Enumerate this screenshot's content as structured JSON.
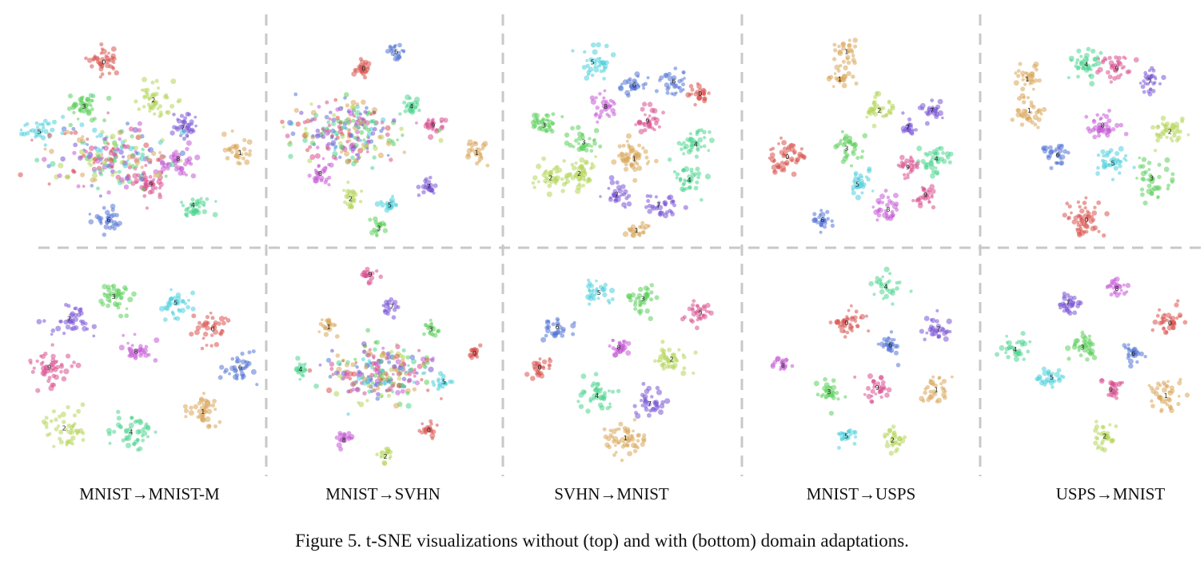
{
  "caption": "Figure 5. t-SNE visualizations without (top) and with (bottom) domain adaptations.",
  "digit_colors": {
    "0": "#d9534f",
    "1": "#d9a65a",
    "2": "#b5d65a",
    "3": "#5ccf5c",
    "4": "#4fd68f",
    "5": "#4fd0dd",
    "6": "#5577d6",
    "7": "#7a55d6",
    "8": "#c55ad6",
    "9": "#d9508f"
  },
  "chart_data": [
    {
      "type": "scatter",
      "panel": "MNIST→MNIST-M",
      "row": "top",
      "clusters": [
        {
          "label": "0",
          "cx": 0.38,
          "cy": 0.17,
          "spread": 0.035,
          "n": 40
        },
        {
          "label": "2",
          "cx": 0.58,
          "cy": 0.35,
          "spread": 0.04,
          "n": 45
        },
        {
          "label": "3",
          "cx": 0.3,
          "cy": 0.38,
          "spread": 0.035,
          "n": 40
        },
        {
          "label": "5",
          "cx": 0.12,
          "cy": 0.5,
          "spread": 0.035,
          "n": 35
        },
        {
          "label": "7",
          "cx": 0.7,
          "cy": 0.48,
          "spread": 0.03,
          "n": 35
        },
        {
          "label": "1",
          "cx": 0.93,
          "cy": 0.6,
          "spread": 0.03,
          "n": 30
        },
        {
          "label": "8",
          "cx": 0.68,
          "cy": 0.63,
          "spread": 0.035,
          "n": 40
        },
        {
          "label": "9",
          "cx": 0.57,
          "cy": 0.75,
          "spread": 0.035,
          "n": 40
        },
        {
          "label": "4",
          "cx": 0.74,
          "cy": 0.85,
          "spread": 0.03,
          "n": 35
        },
        {
          "label": "6",
          "cx": 0.4,
          "cy": 0.92,
          "spread": 0.03,
          "n": 30
        },
        {
          "label": "mixed",
          "cx": 0.4,
          "cy": 0.63,
          "spread": 0.1,
          "n": 220
        }
      ]
    },
    {
      "type": "scatter",
      "panel": "MNIST→SVHN",
      "row": "top",
      "clusters": [
        {
          "label": "6",
          "cx": 0.55,
          "cy": 0.12,
          "spread": 0.02,
          "n": 20
        },
        {
          "label": "0",
          "cx": 0.4,
          "cy": 0.2,
          "spread": 0.02,
          "n": 25
        },
        {
          "label": "4",
          "cx": 0.62,
          "cy": 0.38,
          "spread": 0.025,
          "n": 25
        },
        {
          "label": "9",
          "cx": 0.72,
          "cy": 0.47,
          "spread": 0.025,
          "n": 25
        },
        {
          "label": "1",
          "cx": 0.92,
          "cy": 0.6,
          "spread": 0.03,
          "n": 25
        },
        {
          "label": "8",
          "cx": 0.2,
          "cy": 0.7,
          "spread": 0.025,
          "n": 25
        },
        {
          "label": "7",
          "cx": 0.7,
          "cy": 0.76,
          "spread": 0.02,
          "n": 22
        },
        {
          "label": "2",
          "cx": 0.34,
          "cy": 0.82,
          "spread": 0.025,
          "n": 25
        },
        {
          "label": "5",
          "cx": 0.52,
          "cy": 0.85,
          "spread": 0.02,
          "n": 20
        },
        {
          "label": "3",
          "cx": 0.47,
          "cy": 0.96,
          "spread": 0.02,
          "n": 20
        },
        {
          "label": "mixed",
          "cx": 0.33,
          "cy": 0.5,
          "spread": 0.1,
          "n": 260
        }
      ]
    },
    {
      "type": "scatter",
      "panel": "SVHN→MNIST",
      "row": "top",
      "clusters": [
        {
          "label": "5",
          "cx": 0.36,
          "cy": 0.17,
          "spread": 0.035,
          "n": 35
        },
        {
          "label": "6",
          "cx": 0.55,
          "cy": 0.28,
          "spread": 0.03,
          "n": 30
        },
        {
          "label": "6",
          "cx": 0.73,
          "cy": 0.26,
          "spread": 0.03,
          "n": 30
        },
        {
          "label": "0",
          "cx": 0.85,
          "cy": 0.32,
          "spread": 0.025,
          "n": 25
        },
        {
          "label": "8",
          "cx": 0.42,
          "cy": 0.38,
          "spread": 0.03,
          "n": 30
        },
        {
          "label": "9",
          "cx": 0.61,
          "cy": 0.45,
          "spread": 0.03,
          "n": 30
        },
        {
          "label": "3",
          "cx": 0.14,
          "cy": 0.47,
          "spread": 0.03,
          "n": 35
        },
        {
          "label": "3",
          "cx": 0.32,
          "cy": 0.55,
          "spread": 0.03,
          "n": 30
        },
        {
          "label": "4",
          "cx": 0.83,
          "cy": 0.56,
          "spread": 0.035,
          "n": 40
        },
        {
          "label": "1",
          "cx": 0.55,
          "cy": 0.63,
          "spread": 0.04,
          "n": 55
        },
        {
          "label": "2",
          "cx": 0.3,
          "cy": 0.7,
          "spread": 0.04,
          "n": 45
        },
        {
          "label": "2",
          "cx": 0.17,
          "cy": 0.72,
          "spread": 0.03,
          "n": 35
        },
        {
          "label": "4",
          "cx": 0.8,
          "cy": 0.73,
          "spread": 0.035,
          "n": 35
        },
        {
          "label": "7",
          "cx": 0.47,
          "cy": 0.8,
          "spread": 0.03,
          "n": 30
        },
        {
          "label": "7",
          "cx": 0.66,
          "cy": 0.85,
          "spread": 0.035,
          "n": 35
        },
        {
          "label": "1",
          "cx": 0.56,
          "cy": 0.97,
          "spread": 0.025,
          "n": 25
        }
      ]
    },
    {
      "type": "scatter",
      "panel": "MNIST→USPS",
      "row": "top",
      "clusters": [
        {
          "label": "1",
          "cx": 0.43,
          "cy": 0.12,
          "spread": 0.03,
          "n": 25
        },
        {
          "label": "1",
          "cx": 0.4,
          "cy": 0.25,
          "spread": 0.03,
          "n": 25
        },
        {
          "label": "2",
          "cx": 0.58,
          "cy": 0.4,
          "spread": 0.035,
          "n": 35
        },
        {
          "label": "7",
          "cx": 0.82,
          "cy": 0.4,
          "spread": 0.025,
          "n": 25
        },
        {
          "label": "7",
          "cx": 0.71,
          "cy": 0.48,
          "spread": 0.02,
          "n": 18
        },
        {
          "label": "3",
          "cx": 0.43,
          "cy": 0.58,
          "spread": 0.035,
          "n": 35
        },
        {
          "label": "0",
          "cx": 0.16,
          "cy": 0.62,
          "spread": 0.045,
          "n": 50
        },
        {
          "label": "4",
          "cx": 0.84,
          "cy": 0.63,
          "spread": 0.04,
          "n": 40
        },
        {
          "label": "9",
          "cx": 0.71,
          "cy": 0.67,
          "spread": 0.025,
          "n": 25
        },
        {
          "label": "5",
          "cx": 0.48,
          "cy": 0.75,
          "spread": 0.03,
          "n": 30
        },
        {
          "label": "9",
          "cx": 0.79,
          "cy": 0.8,
          "spread": 0.025,
          "n": 25
        },
        {
          "label": "8",
          "cx": 0.62,
          "cy": 0.87,
          "spread": 0.03,
          "n": 30
        },
        {
          "label": "6",
          "cx": 0.32,
          "cy": 0.92,
          "spread": 0.025,
          "n": 25
        }
      ]
    },
    {
      "type": "scatter",
      "panel": "USPS→MNIST",
      "row": "top",
      "clusters": [
        {
          "label": "1",
          "cx": 0.18,
          "cy": 0.25,
          "spread": 0.03,
          "n": 30
        },
        {
          "label": "1",
          "cx": 0.19,
          "cy": 0.4,
          "spread": 0.035,
          "n": 35
        },
        {
          "label": "4",
          "cx": 0.47,
          "cy": 0.18,
          "spread": 0.04,
          "n": 40
        },
        {
          "label": "9",
          "cx": 0.62,
          "cy": 0.2,
          "spread": 0.035,
          "n": 35
        },
        {
          "label": "7",
          "cx": 0.78,
          "cy": 0.26,
          "spread": 0.03,
          "n": 30
        },
        {
          "label": "8",
          "cx": 0.55,
          "cy": 0.47,
          "spread": 0.035,
          "n": 40
        },
        {
          "label": "2",
          "cx": 0.88,
          "cy": 0.5,
          "spread": 0.04,
          "n": 40
        },
        {
          "label": "6",
          "cx": 0.33,
          "cy": 0.61,
          "spread": 0.03,
          "n": 30
        },
        {
          "label": "5",
          "cx": 0.6,
          "cy": 0.65,
          "spread": 0.035,
          "n": 35
        },
        {
          "label": "3",
          "cx": 0.79,
          "cy": 0.72,
          "spread": 0.04,
          "n": 40
        },
        {
          "label": "0",
          "cx": 0.47,
          "cy": 0.92,
          "spread": 0.045,
          "n": 55
        }
      ]
    },
    {
      "type": "scatter",
      "panel": "MNIST→MNIST-M",
      "row": "bottom",
      "clusters": [
        {
          "label": "3",
          "cx": 0.42,
          "cy": 0.17,
          "spread": 0.035,
          "n": 40
        },
        {
          "label": "5",
          "cx": 0.67,
          "cy": 0.2,
          "spread": 0.035,
          "n": 35
        },
        {
          "label": "7",
          "cx": 0.24,
          "cy": 0.28,
          "spread": 0.04,
          "n": 40
        },
        {
          "label": "0",
          "cx": 0.82,
          "cy": 0.33,
          "spread": 0.035,
          "n": 35
        },
        {
          "label": "8",
          "cx": 0.51,
          "cy": 0.44,
          "spread": 0.03,
          "n": 30
        },
        {
          "label": "9",
          "cx": 0.16,
          "cy": 0.52,
          "spread": 0.045,
          "n": 45
        },
        {
          "label": "6",
          "cx": 0.93,
          "cy": 0.52,
          "spread": 0.035,
          "n": 35
        },
        {
          "label": "1",
          "cx": 0.78,
          "cy": 0.74,
          "spread": 0.04,
          "n": 40
        },
        {
          "label": "2",
          "cx": 0.22,
          "cy": 0.82,
          "spread": 0.045,
          "n": 45
        },
        {
          "label": "4",
          "cx": 0.49,
          "cy": 0.84,
          "spread": 0.04,
          "n": 45
        }
      ]
    },
    {
      "type": "scatter",
      "panel": "MNIST→SVHN",
      "row": "bottom",
      "clusters": [
        {
          "label": "9",
          "cx": 0.43,
          "cy": 0.06,
          "spread": 0.02,
          "n": 18
        },
        {
          "label": "7",
          "cx": 0.53,
          "cy": 0.22,
          "spread": 0.02,
          "n": 18
        },
        {
          "label": "1",
          "cx": 0.24,
          "cy": 0.32,
          "spread": 0.02,
          "n": 20
        },
        {
          "label": "3",
          "cx": 0.71,
          "cy": 0.33,
          "spread": 0.02,
          "n": 18
        },
        {
          "label": "0",
          "cx": 0.91,
          "cy": 0.45,
          "spread": 0.02,
          "n": 18
        },
        {
          "label": "4",
          "cx": 0.11,
          "cy": 0.53,
          "spread": 0.02,
          "n": 18
        },
        {
          "label": "5",
          "cx": 0.77,
          "cy": 0.59,
          "spread": 0.02,
          "n": 18
        },
        {
          "label": "0",
          "cx": 0.7,
          "cy": 0.83,
          "spread": 0.02,
          "n": 18
        },
        {
          "label": "8",
          "cx": 0.31,
          "cy": 0.88,
          "spread": 0.02,
          "n": 18
        },
        {
          "label": "2",
          "cx": 0.5,
          "cy": 0.96,
          "spread": 0.02,
          "n": 18
        },
        {
          "label": "mixed",
          "cx": 0.48,
          "cy": 0.54,
          "spread": 0.09,
          "n": 260
        }
      ]
    },
    {
      "type": "scatter",
      "panel": "SVHN→MNIST",
      "row": "bottom",
      "clusters": [
        {
          "label": "5",
          "cx": 0.39,
          "cy": 0.15,
          "spread": 0.03,
          "n": 30
        },
        {
          "label": "3",
          "cx": 0.59,
          "cy": 0.18,
          "spread": 0.035,
          "n": 40
        },
        {
          "label": "9",
          "cx": 0.85,
          "cy": 0.25,
          "spread": 0.03,
          "n": 30
        },
        {
          "label": "6",
          "cx": 0.2,
          "cy": 0.32,
          "spread": 0.03,
          "n": 30
        },
        {
          "label": "8",
          "cx": 0.48,
          "cy": 0.42,
          "spread": 0.025,
          "n": 25
        },
        {
          "label": "2",
          "cx": 0.72,
          "cy": 0.48,
          "spread": 0.04,
          "n": 40
        },
        {
          "label": "0",
          "cx": 0.12,
          "cy": 0.52,
          "spread": 0.03,
          "n": 28
        },
        {
          "label": "4",
          "cx": 0.38,
          "cy": 0.66,
          "spread": 0.04,
          "n": 40
        },
        {
          "label": "7",
          "cx": 0.62,
          "cy": 0.7,
          "spread": 0.035,
          "n": 35
        },
        {
          "label": "1",
          "cx": 0.51,
          "cy": 0.87,
          "spread": 0.045,
          "n": 50
        }
      ]
    },
    {
      "type": "scatter",
      "panel": "MNIST→USPS",
      "row": "bottom",
      "clusters": [
        {
          "label": "4",
          "cx": 0.61,
          "cy": 0.12,
          "spread": 0.03,
          "n": 28
        },
        {
          "label": "0",
          "cx": 0.43,
          "cy": 0.3,
          "spread": 0.04,
          "n": 40
        },
        {
          "label": "7",
          "cx": 0.85,
          "cy": 0.33,
          "spread": 0.03,
          "n": 30
        },
        {
          "label": "6",
          "cx": 0.63,
          "cy": 0.41,
          "spread": 0.03,
          "n": 30
        },
        {
          "label": "8",
          "cx": 0.14,
          "cy": 0.51,
          "spread": 0.02,
          "n": 18
        },
        {
          "label": "3",
          "cx": 0.35,
          "cy": 0.64,
          "spread": 0.03,
          "n": 30
        },
        {
          "label": "9",
          "cx": 0.57,
          "cy": 0.62,
          "spread": 0.03,
          "n": 30
        },
        {
          "label": "1",
          "cx": 0.84,
          "cy": 0.63,
          "spread": 0.03,
          "n": 30
        },
        {
          "label": "5",
          "cx": 0.43,
          "cy": 0.86,
          "spread": 0.025,
          "n": 22
        },
        {
          "label": "2",
          "cx": 0.64,
          "cy": 0.88,
          "spread": 0.03,
          "n": 28
        }
      ]
    },
    {
      "type": "scatter",
      "panel": "USPS→MNIST",
      "row": "bottom",
      "clusters": [
        {
          "label": "7",
          "cx": 0.38,
          "cy": 0.2,
          "spread": 0.03,
          "n": 30
        },
        {
          "label": "8",
          "cx": 0.62,
          "cy": 0.13,
          "spread": 0.025,
          "n": 25
        },
        {
          "label": "0",
          "cx": 0.88,
          "cy": 0.3,
          "spread": 0.035,
          "n": 35
        },
        {
          "label": "4",
          "cx": 0.12,
          "cy": 0.43,
          "spread": 0.03,
          "n": 30
        },
        {
          "label": "3",
          "cx": 0.45,
          "cy": 0.42,
          "spread": 0.035,
          "n": 35
        },
        {
          "label": "6",
          "cx": 0.7,
          "cy": 0.45,
          "spread": 0.025,
          "n": 25
        },
        {
          "label": "5",
          "cx": 0.3,
          "cy": 0.57,
          "spread": 0.03,
          "n": 28
        },
        {
          "label": "9",
          "cx": 0.59,
          "cy": 0.63,
          "spread": 0.025,
          "n": 25
        },
        {
          "label": "1",
          "cx": 0.86,
          "cy": 0.66,
          "spread": 0.045,
          "n": 40
        },
        {
          "label": "2",
          "cx": 0.56,
          "cy": 0.86,
          "spread": 0.03,
          "n": 30
        }
      ]
    }
  ],
  "panel_labels": [
    "MNIST→MNIST-M",
    "MNIST→SVHN",
    "SVHN→MNIST",
    "MNIST→USPS",
    "USPS→MNIST"
  ]
}
